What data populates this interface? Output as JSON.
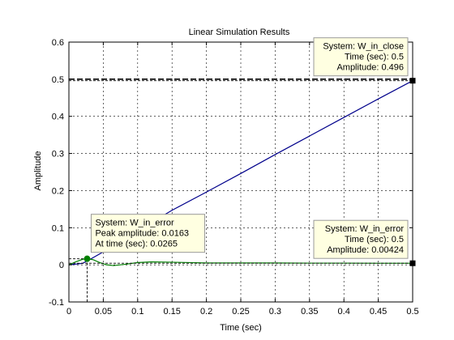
{
  "chart_data": {
    "type": "line",
    "title": "Linear Simulation Results",
    "xlabel": "Time (sec)",
    "ylabel": "Amplitude",
    "xlim": [
      0,
      0.5
    ],
    "ylim": [
      -0.1,
      0.6
    ],
    "xticks": [
      0,
      0.05,
      0.1,
      0.15,
      0.2,
      0.25,
      0.3,
      0.35,
      0.4,
      0.45,
      0.5
    ],
    "xtick_labels": [
      "0",
      "0.05",
      "0.1",
      "0.15",
      "0.2",
      "0.25",
      "0.3",
      "0.35",
      "0.4",
      "0.45",
      "0.5"
    ],
    "yticks": [
      -0.1,
      0,
      0.1,
      0.2,
      0.3,
      0.4,
      0.5,
      0.6
    ],
    "ytick_labels": [
      "-0.1",
      "0",
      "0.1",
      "0.2",
      "0.3",
      "0.4",
      "0.5",
      "0.6"
    ],
    "grid": true,
    "series": [
      {
        "name": "W_in_close",
        "color": "#00008b",
        "x": [
          0,
          0.02,
          0.03,
          0.05,
          0.075,
          0.1,
          0.15,
          0.2,
          0.25,
          0.3,
          0.35,
          0.4,
          0.45,
          0.5
        ],
        "y": [
          0,
          0.004,
          0.014,
          0.035,
          0.066,
          0.092,
          0.147,
          0.196,
          0.246,
          0.297,
          0.347,
          0.397,
          0.447,
          0.496
        ]
      },
      {
        "name": "W_in_error",
        "color": "#008000",
        "x": [
          0,
          0.01,
          0.02,
          0.0265,
          0.035,
          0.045,
          0.055,
          0.065,
          0.08,
          0.1,
          0.12,
          0.15,
          0.2,
          0.25,
          0.3,
          0.35,
          0.4,
          0.45,
          0.5
        ],
        "y": [
          0,
          0.008,
          0.015,
          0.0163,
          0.014,
          0.006,
          0.0,
          -0.002,
          0.001,
          0.006,
          0.008,
          0.007,
          0.005,
          0.005,
          0.005,
          0.0045,
          0.0045,
          0.0043,
          0.00424
        ]
      }
    ],
    "reference_line": {
      "y": 0.5,
      "color": "#000000"
    },
    "datatips": [
      {
        "lines": [
          "System: W_in_close",
          "Time (sec): 0.5",
          "Amplitude: 0.496"
        ],
        "x": 0.5,
        "y": 0.496,
        "marker": "square",
        "color": "#000000",
        "align": "right"
      },
      {
        "lines": [
          "System: W_in_error",
          "Peak amplitude: 0.0163",
          "At time (sec): 0.0265"
        ],
        "x": 0.0265,
        "y": 0.0163,
        "marker": "circle",
        "color": "#008000",
        "align": "left"
      },
      {
        "lines": [
          "System: W_in_error",
          "Time (sec): 0.5",
          "Amplitude: 0.00424"
        ],
        "x": 0.5,
        "y": 0.00424,
        "marker": "square",
        "color": "#000000",
        "align": "right"
      }
    ]
  }
}
